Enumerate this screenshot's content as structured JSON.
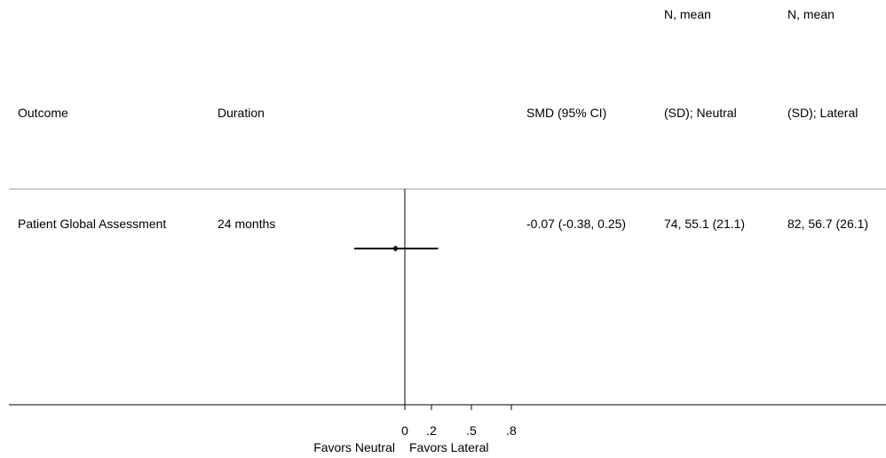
{
  "headers": {
    "outcome": "Outcome",
    "duration": "Duration",
    "smd": "SMD (95% CI)",
    "neutral_line1": "N, mean",
    "neutral_line2": "(SD); Neutral",
    "lateral_line1": "N, mean",
    "lateral_line2": "(SD); Lateral"
  },
  "rows": [
    {
      "outcome": "Patient Global Assessment",
      "duration": "24 months",
      "smd_text": "-0.07 (-0.38, 0.25)",
      "neutral_text": "74, 55.1 (21.1)",
      "lateral_text": "82, 56.7 (26.1)"
    }
  ],
  "axis": {
    "left_label": "Favors Neutral",
    "right_label": "Favors Lateral"
  },
  "chart_data": {
    "type": "scatter",
    "subtype": "forest",
    "xlim": [
      -0.38,
      0.8
    ],
    "null_line": 0,
    "ticks": [
      {
        "value": 0,
        "label": "0"
      },
      {
        "value": 0.2,
        "label": ".2"
      },
      {
        "value": 0.5,
        "label": ".5"
      },
      {
        "value": 0.8,
        "label": ".8"
      }
    ],
    "points": [
      {
        "estimate": -0.07,
        "ci_low": -0.38,
        "ci_high": 0.25
      }
    ],
    "colors": {
      "marks": "#000000",
      "rules": "#999999"
    }
  }
}
